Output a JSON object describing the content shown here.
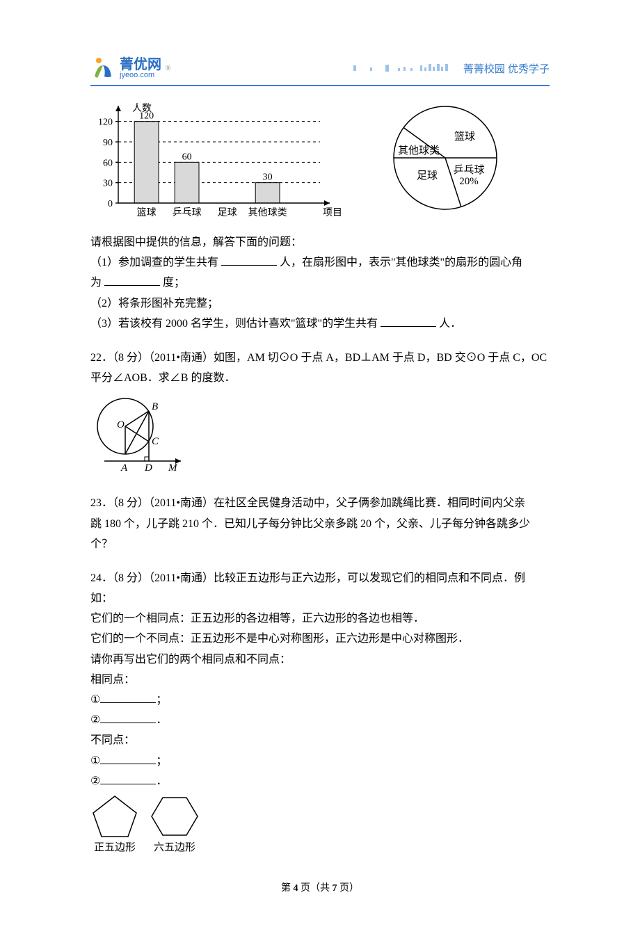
{
  "header": {
    "logo_cn": "菁优网",
    "logo_en": "jyeoo.com",
    "tagline": "菁菁校园 优秀学子",
    "logo_colors": {
      "orange": "#f5a623",
      "green": "#7cb342",
      "blue": "#2a6fc3"
    },
    "underline_color": "#3a7fd0"
  },
  "bar_chart": {
    "type": "bar",
    "y_axis_label": "人数",
    "x_axis_label": "项目",
    "categories": [
      "篮球",
      "乒乓球",
      "足球",
      "其他球类"
    ],
    "values": [
      120,
      60,
      null,
      30
    ],
    "value_labels": [
      "120",
      "60",
      "",
      "30"
    ],
    "y_ticks": [
      0,
      30,
      60,
      90,
      120
    ],
    "ylim": [
      0,
      135
    ],
    "bar_fill": "#d9d9d9",
    "bar_stroke": "#000000",
    "bar_width_ratio": 0.6,
    "background": "#ffffff",
    "axis_color": "#000000",
    "guide_style": "dashed"
  },
  "pie_chart": {
    "type": "pie",
    "slices": [
      {
        "label": "篮球",
        "angle_approx": 144
      },
      {
        "label": "乒乓球",
        "angle_approx": 72,
        "sub_label": "20%"
      },
      {
        "label": "足球",
        "angle_approx": 108
      },
      {
        "label": "其他球类",
        "angle_approx": 36
      }
    ],
    "stroke": "#000000",
    "fill": "#ffffff",
    "label_fontsize": 15
  },
  "q21": {
    "intro": "请根据图中提供的信息，解答下面的问题：",
    "part1_a": "（1）参加调查的学生共有",
    "part1_b": "人，在扇形图中，表示\"其他球类\"的扇形的圆心角",
    "part1_c": "为",
    "part1_d": "度；",
    "part2": "（2）将条形图补充完整；",
    "part3_a": "（3）若该校有 2000 名学生，则估计喜欢\"篮球\"的学生共有",
    "part3_b": "人．"
  },
  "q22": {
    "text_a": "22．（8 分）（2011•南通）如图，AM 切⊙O 于点 A，BD⊥AM 于点 D，BD 交⊙O 于点 C，OC",
    "text_b": "平分∠AOB．求∠B 的度数．",
    "figure": {
      "labels": {
        "O": "O",
        "A": "A",
        "B": "B",
        "C": "C",
        "D": "D",
        "M": "M"
      },
      "stroke": "#000000"
    }
  },
  "q23": {
    "text_a": "23．（8 分）（2011•南通）在社区全民健身活动中，父子俩参加跳绳比赛．相同时间内父亲",
    "text_b": "跳 180 个，儿子跳 210 个．已知儿子每分钟比父亲多跳 20 个，父亲、儿子每分钟各跳多少",
    "text_c": "个？"
  },
  "q24": {
    "text_a": "24．（8 分）（2011•南通）比较正五边形与正六边形，可以发现它们的相同点和不同点．例",
    "text_b": "如：",
    "same_ex": "它们的一个相同点：正五边形的各边相等，正六边形的各边也相等．",
    "diff_ex": "它们的一个不同点：正五边形不是中心对称图形，正六边形是中心对称图形．",
    "instr": "请你再写出它们的两个相同点和不同点：",
    "same_hdr": "相同点：",
    "diff_hdr": "不同点：",
    "item1": "①",
    "item1_end": "；",
    "item2": "②",
    "item2_end": "．",
    "pentagon_label": "正五边形",
    "hexagon_label": "六五边形",
    "poly_stroke": "#000000",
    "poly_fill": "#ffffff"
  },
  "footer": {
    "prefix": "第 ",
    "page": "4",
    "mid": " 页（共 ",
    "total": "7",
    "suffix": " 页）"
  }
}
